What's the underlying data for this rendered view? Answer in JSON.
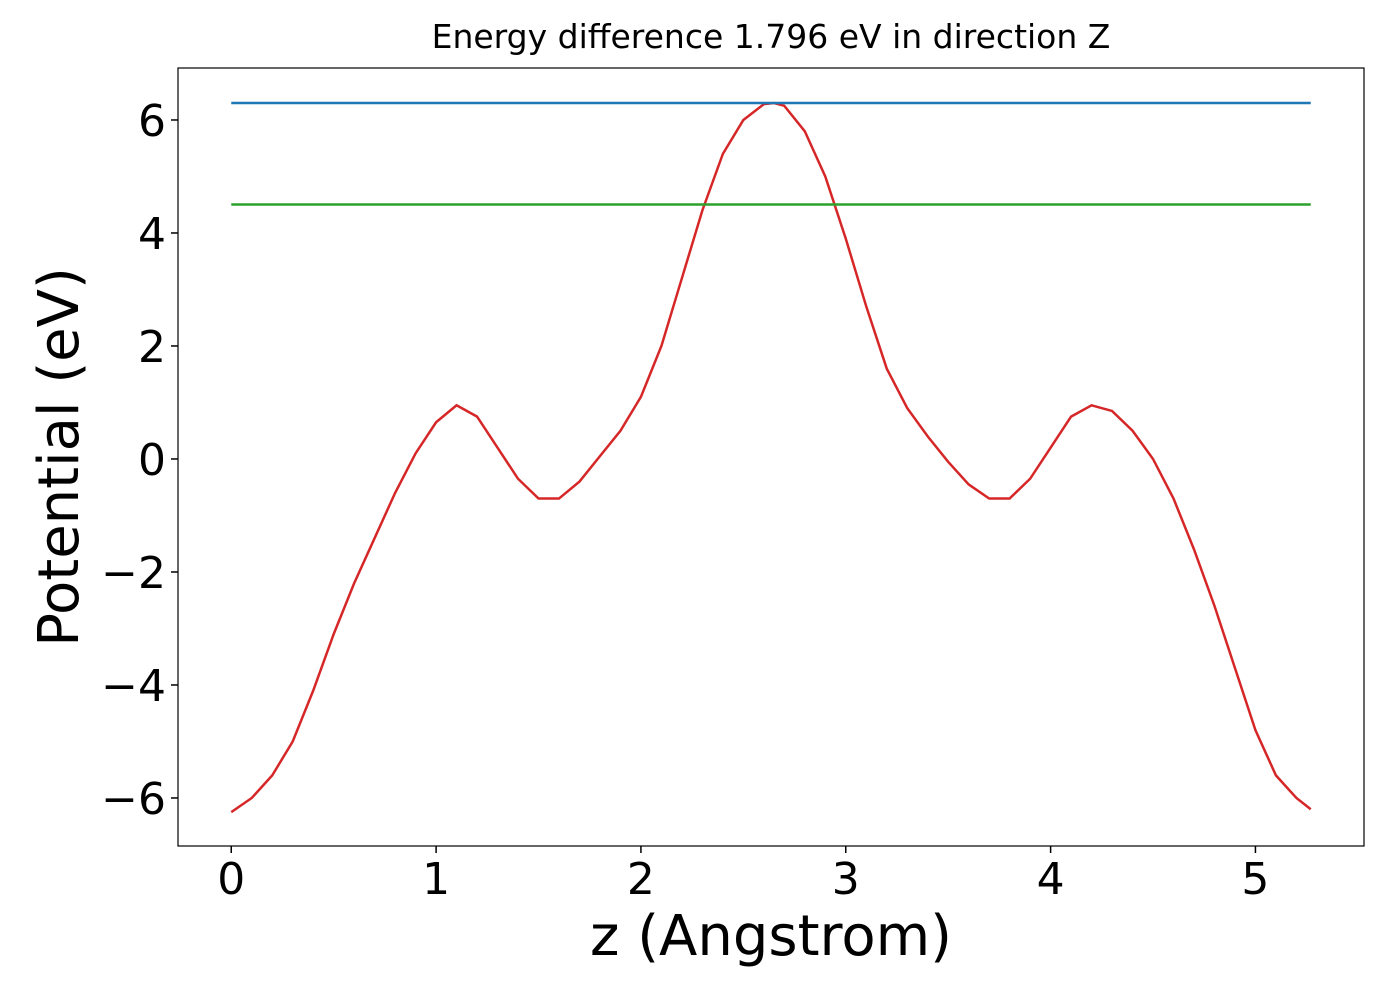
{
  "chart_data": {
    "type": "line",
    "title": "Energy difference 1.796 eV in direction Z",
    "x_label": "z (Angstrom)",
    "y_label": "Potential (eV)",
    "xlim": [
      -0.26,
      5.53
    ],
    "ylim": [
      -6.85,
      6.92
    ],
    "xticks": [
      0,
      1,
      2,
      3,
      4,
      5
    ],
    "yticks": [
      {
        "value": -6,
        "label": "−6"
      },
      {
        "value": -4,
        "label": "−4"
      },
      {
        "value": -2,
        "label": "−2"
      },
      0,
      2,
      4,
      6
    ],
    "series": [
      {
        "color": "#d62728",
        "x": [
          0,
          0.1,
          0.2,
          0.3,
          0.4,
          0.5,
          0.6,
          0.7,
          0.8,
          0.9,
          1.0,
          1.1,
          1.2,
          1.3,
          1.4,
          1.5,
          1.6,
          1.7,
          1.8,
          1.9,
          2.0,
          2.1,
          2.2,
          2.3,
          2.4,
          2.5,
          2.6,
          2.65,
          2.7,
          2.8,
          2.9,
          3.0,
          3.1,
          3.2,
          3.3,
          3.4,
          3.5,
          3.6,
          3.7,
          3.8,
          3.9,
          4.0,
          4.1,
          4.2,
          4.3,
          4.4,
          4.5,
          4.6,
          4.7,
          4.8,
          4.9,
          5.0,
          5.1,
          5.2,
          5.27
        ],
        "values": [
          -6.25,
          -6.0,
          -5.6,
          -5.0,
          -4.1,
          -3.1,
          -2.2,
          -1.4,
          -0.6,
          0.1,
          0.65,
          0.95,
          0.75,
          0.2,
          -0.35,
          -0.7,
          -0.7,
          -0.4,
          0.05,
          0.5,
          1.1,
          2.0,
          3.2,
          4.4,
          5.4,
          6.0,
          6.28,
          6.3,
          6.25,
          5.8,
          5.0,
          3.9,
          2.7,
          1.6,
          0.9,
          0.4,
          -0.05,
          -0.45,
          -0.7,
          -0.7,
          -0.35,
          0.2,
          0.75,
          0.95,
          0.85,
          0.5,
          0.0,
          -0.7,
          -1.6,
          -2.6,
          -3.7,
          -4.8,
          -5.6,
          -6.0,
          -6.2
        ]
      },
      {
        "color": "#1f77b4",
        "x": [
          0,
          5.27
        ],
        "values": [
          6.3,
          6.3
        ]
      },
      {
        "color": "#2ca02c",
        "x": [
          0,
          5.27
        ],
        "values": [
          4.504,
          4.504
        ]
      }
    ]
  }
}
